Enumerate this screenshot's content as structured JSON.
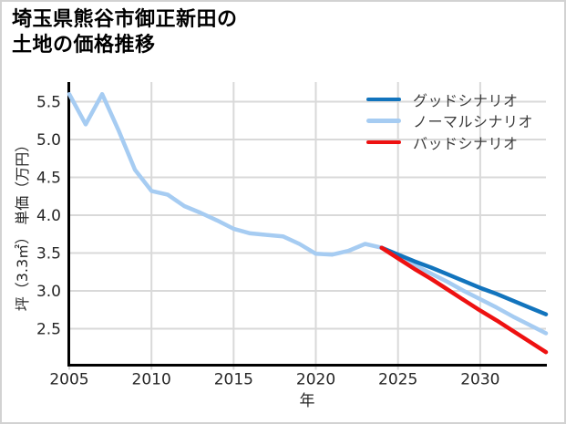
{
  "figure": {
    "title_lines": [
      "埼玉県熊谷市御正新田の",
      "土地の価格推移"
    ]
  },
  "chart_data": {
    "type": "line",
    "title": "埼玉県熊谷市御正新田の土地の価格推移",
    "xlabel": "年",
    "ylabel": "坪（3.3㎡） 単価（万円）",
    "xlim": [
      2005,
      2034
    ],
    "ylim": [
      2.03,
      5.75
    ],
    "x_ticks": [
      2005,
      2010,
      2015,
      2020,
      2025,
      2030
    ],
    "y_tick_labels": [
      "5.5",
      "5.0",
      "4.5",
      "4.0",
      "3.5",
      "3.0",
      "2.5"
    ],
    "grid": true,
    "legend_position": "upper-right-inside",
    "colors": {
      "good": "#1274bd",
      "normal": "#a6ccf2",
      "bad": "#ee1111",
      "grid": "#d9d9d9",
      "axis": "#000000",
      "tick_text": "#262626"
    },
    "series": [
      {
        "id": "history",
        "color_key": "normal",
        "x": [
          2005,
          2006,
          2007,
          2008,
          2009,
          2010,
          2011,
          2012,
          2013,
          2014,
          2015,
          2016,
          2017,
          2018,
          2019,
          2020,
          2021,
          2022,
          2023,
          2024
        ],
        "values": [
          5.6,
          5.2,
          5.6,
          5.12,
          4.6,
          4.32,
          4.27,
          4.12,
          4.03,
          3.93,
          3.82,
          3.76,
          3.74,
          3.72,
          3.62,
          3.49,
          3.48,
          3.53,
          3.62,
          3.57
        ]
      },
      {
        "id": "normal",
        "color_key": "normal",
        "x": [
          2024,
          2025,
          2026,
          2027,
          2028,
          2029,
          2030,
          2031,
          2032,
          2033,
          2034
        ],
        "values": [
          3.57,
          3.46,
          3.34,
          3.23,
          3.12,
          3.0,
          2.89,
          2.78,
          2.66,
          2.55,
          2.44
        ]
      },
      {
        "id": "good",
        "color_key": "good",
        "x": [
          2024,
          2025,
          2026,
          2027,
          2028,
          2029,
          2030,
          2031,
          2032,
          2033,
          2034
        ],
        "values": [
          3.57,
          3.48,
          3.39,
          3.31,
          3.22,
          3.13,
          3.04,
          2.96,
          2.87,
          2.78,
          2.69
        ]
      },
      {
        "id": "bad",
        "color_key": "bad",
        "x": [
          2024,
          2025,
          2026,
          2027,
          2028,
          2029,
          2030,
          2031,
          2032,
          2033,
          2034
        ],
        "values": [
          3.57,
          3.43,
          3.29,
          3.16,
          3.02,
          2.88,
          2.74,
          2.61,
          2.47,
          2.33,
          2.19
        ]
      }
    ],
    "legend": [
      {
        "id": "good",
        "label": "グッドシナリオ"
      },
      {
        "id": "normal",
        "label": "ノーマルシナリオ"
      },
      {
        "id": "bad",
        "label": "バッドシナリオ"
      }
    ]
  }
}
